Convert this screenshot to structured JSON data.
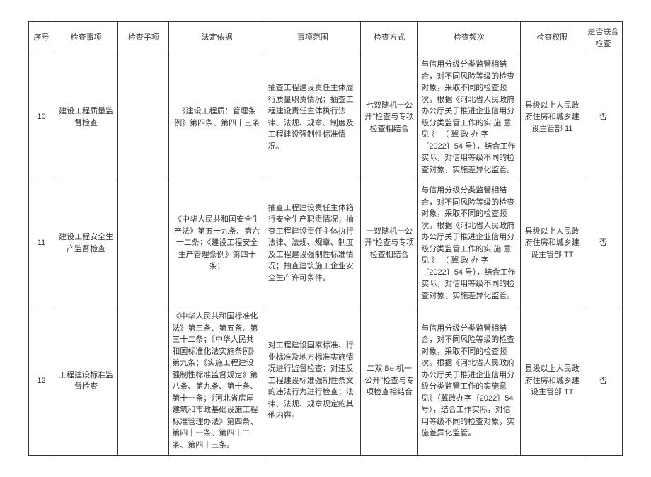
{
  "headers": {
    "seq": "序号",
    "item": "检查事项",
    "sub": "检查子项",
    "basis": "法定依据",
    "scope": "事项范围",
    "method": "检查方式",
    "freq": "检查频次",
    "auth": "检查权限",
    "joint": "是否联合检查"
  },
  "rows": [
    {
      "seq": "10",
      "item": "建设工程质量监督检查",
      "sub": "",
      "basis": "《建设工程质：管理条例》第四条、第四十三条",
      "scope": "抽查工程建设责任主体履行质量职责情况；抽查工程建设责任主体执行法律、法规、规章、制度及工程建设强制性标准情况。",
      "method": "七双随机一公开\"检查与专项检查相结合",
      "freq": "与信用分级分类监管相结合，对不同风险等级的检查对象，采取不同的检查频次。根据《河北省人民政府办公厅关于推进企业信用分级分类监管工作的实 施 意 见 》 （ 冀 政 办 字〔2022〕54 号），结合工作实际，对信用等级不同的检查对象，实施差异化监管。",
      "auth": "县级以上人民政府住房和城乡建设主管部 11",
      "joint": "否"
    },
    {
      "seq": "11",
      "item": "建设工程安全生产监督检查",
      "sub": "",
      "basis": "《中华人民共和国安全生产法》第五十九条、第六十二条；《建设工程安全生产管理条例》第四十条；",
      "scope": "抽查工程建设责任主体箱行安全生产职责情况；抽查工程建设责任主体执行法律、法规、规章、制度及工程建设强制性标准情况；抽查建筑施工企业安全生产许可条件。",
      "method": "一双随机一公开\"检查与专项检查相结合",
      "freq": "与信用分级分类监管相结合，对不同风险等级的检查对象，采取不同的检查频次。根据《河北省人民政府办公厅关于推进企业信用分级分类监管工作的实 施 意 见 》 （ 冀 政 办 字〔2022〕54 号），结合工作实际，对信用等级不同的检查对象，实施差异化监管。",
      "auth": "县级以上人民政府住房和城乡建设主管部 TT",
      "joint": "否"
    },
    {
      "seq": "12",
      "item": "工程建设标准监督检查",
      "sub": "",
      "basis": "《中华人民共和国标准化法》第三条、第五条、第三十二条；《中华人民共和国标准化法实施条例》第九条；《实施工程建设强制性标准监督规定》第八条、第九条、第十条、第十一条；《河北省房屋建筑和市政基础设施工程标准管理办法》第四条、第四十一条、第四十二条、第四十三条。",
      "scope": "对工程建设国家标准、行业标准及地方标准实施情况进行监督检查；对违反工程建设标准强制性条文的违法行为进行检查；法律、法规、规章规定的其他内容。",
      "method": "二双 Be 机一公开\"检查与专项检查相结合",
      "freq": "与信用分级分类监管相结合，对不同风险等级的检查对象，采取不同的检查频次。根据《河北省人民政府办公厅关于推进企业信用分级分类监管工作的实施意见》（冀改办字〔2022〕54 号），结合工作实际，对信用等级不同的检查对象，实施差异化监管。",
      "auth": "县级以上人民政府住房和城乡建设主管部 TT",
      "joint": "否"
    }
  ]
}
